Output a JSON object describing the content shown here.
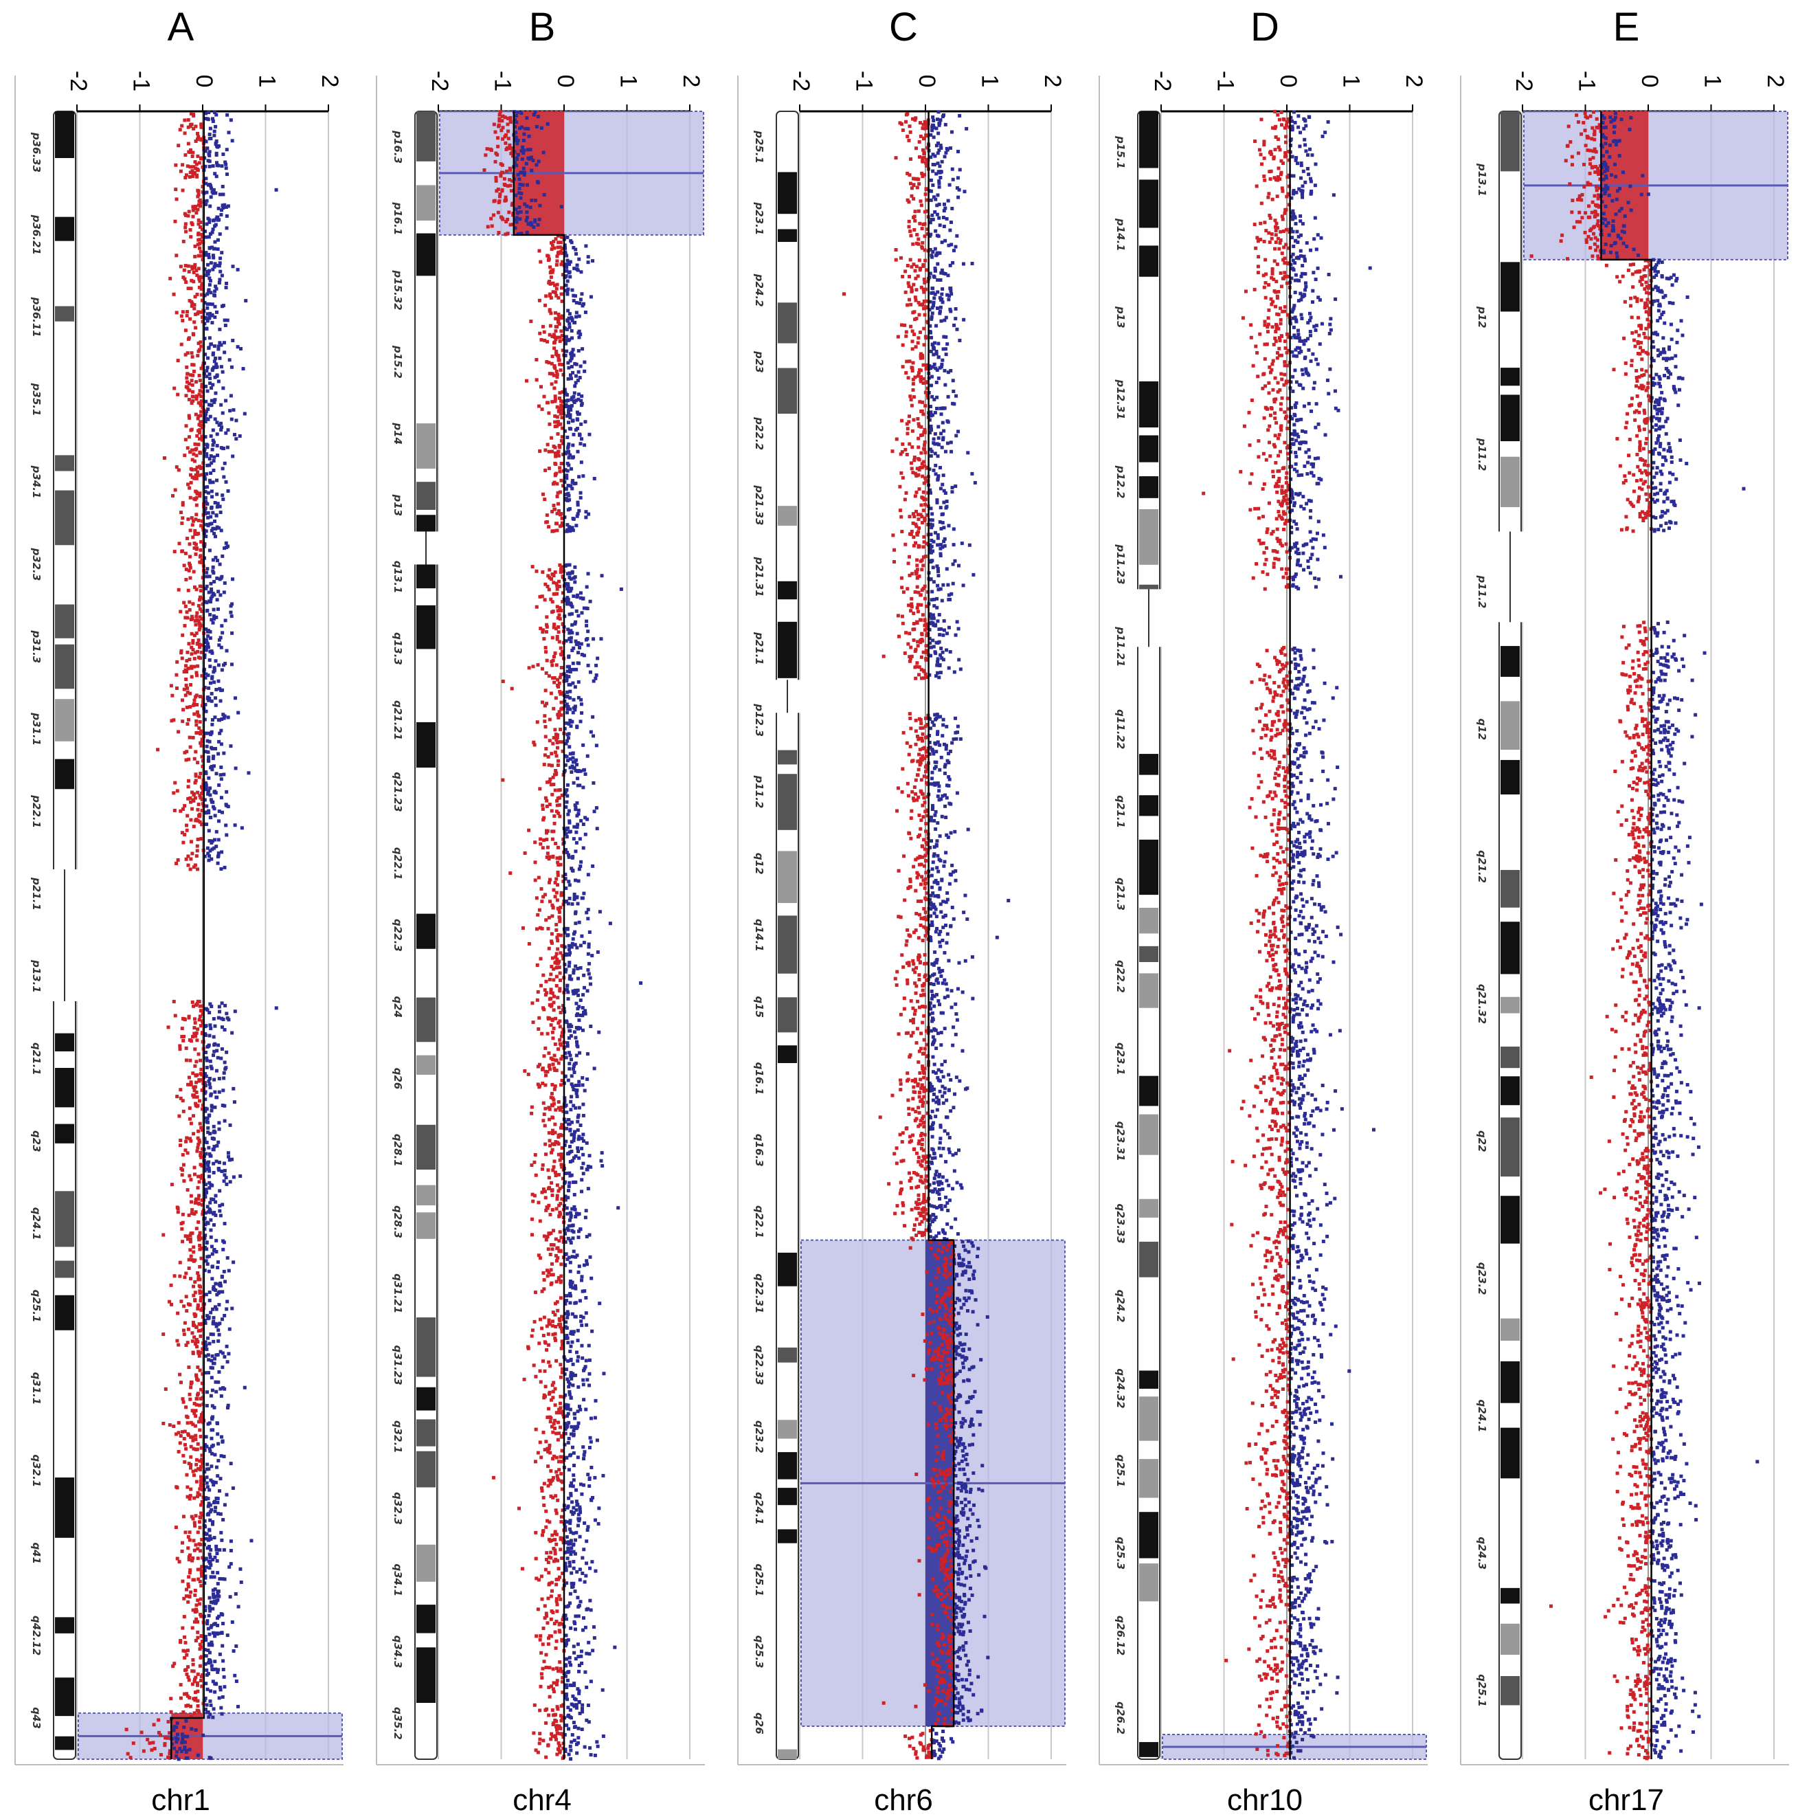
{
  "colors": {
    "loss": "#cc2228",
    "gain": "#2c2c96",
    "highlight_fill": "#b9b9e6",
    "highlight_border": "#5a5ab4",
    "grid": "#c8c8c8",
    "axis": "#000000"
  },
  "chart_data": [
    {
      "panel": "A",
      "type": "scatter",
      "title": "A",
      "xlabel": "chr1",
      "xlim": [
        -2,
        2
      ],
      "x_ticks": [
        "-2",
        "-1",
        "0",
        "1",
        "2"
      ],
      "band_labels": [
        "p36.33",
        "p36.21",
        "p36.11",
        "p35.1",
        "p34.1",
        "p32.3",
        "p31.3",
        "p31.1",
        "p22.1",
        "p21.1",
        "p13.1",
        "q21.1",
        "q23",
        "q24.1",
        "q25.1",
        "q31.1",
        "q32.1",
        "q41",
        "q42.12",
        "q43"
      ],
      "segments": [
        {
          "start_frac": 0.0,
          "end_frac": 0.46,
          "center": 0.02,
          "spread": 0.42
        },
        {
          "start_frac": 0.54,
          "end_frac": 0.975,
          "center": 0.02,
          "spread": 0.42
        },
        {
          "start_frac": 0.975,
          "end_frac": 1.0,
          "center": -0.5,
          "spread": 0.5
        }
      ],
      "highlights": [
        {
          "from_frac": 0.972,
          "to_frac": 1.0,
          "value": -0.5,
          "label": "loss"
        }
      ]
    },
    {
      "panel": "B",
      "type": "scatter",
      "title": "B",
      "xlabel": "chr4",
      "xlim": [
        -2,
        2
      ],
      "x_ticks": [
        "-2",
        "-1",
        "0",
        "1",
        "2"
      ],
      "band_labels": [
        "p16.3",
        "p16.1",
        "p15.32",
        "p15.2",
        "p14",
        "p13",
        "q13.1",
        "q13.3",
        "q21.21",
        "q21.23",
        "q22.1",
        "q22.3",
        "q24",
        "q26",
        "q28.1",
        "q28.3",
        "q31.21",
        "q31.23",
        "q32.1",
        "q32.3",
        "q34.1",
        "q34.3",
        "q35.2"
      ],
      "segments": [
        {
          "start_frac": 0.0,
          "end_frac": 0.075,
          "center": -0.8,
          "spread": 0.45
        },
        {
          "start_frac": 0.075,
          "end_frac": 0.255,
          "center": 0.0,
          "spread": 0.35
        },
        {
          "start_frac": 0.275,
          "end_frac": 1.0,
          "center": 0.0,
          "spread": 0.45
        }
      ],
      "highlights": [
        {
          "from_frac": 0.0,
          "to_frac": 0.075,
          "value": -0.8,
          "label": "loss"
        }
      ]
    },
    {
      "panel": "C",
      "type": "scatter",
      "title": "C",
      "xlabel": "chr6",
      "xlim": [
        -2,
        2
      ],
      "x_ticks": [
        "-2",
        "-1",
        "0",
        "1",
        "2"
      ],
      "band_labels": [
        "p25.1",
        "p23.1",
        "p24.2",
        "p23",
        "p22.2",
        "p21.33",
        "p21.31",
        "p21.1",
        "p12.3",
        "p11.2",
        "q12",
        "q14.1",
        "q15",
        "q16.1",
        "q16.3",
        "q22.1",
        "q22.31",
        "q22.33",
        "q23.2",
        "q24.1",
        "q25.1",
        "q25.3",
        "q26"
      ],
      "segments": [
        {
          "start_frac": 0.0,
          "end_frac": 0.345,
          "center": 0.05,
          "spread": 0.45
        },
        {
          "start_frac": 0.365,
          "end_frac": 0.685,
          "center": 0.05,
          "spread": 0.45
        },
        {
          "start_frac": 0.685,
          "end_frac": 0.98,
          "center": 0.45,
          "spread": 0.38
        },
        {
          "start_frac": 0.98,
          "end_frac": 1.0,
          "center": 0.1,
          "spread": 0.3
        }
      ],
      "highlights": [
        {
          "from_frac": 0.685,
          "to_frac": 0.98,
          "value": 0.45,
          "label": "gain"
        }
      ]
    },
    {
      "panel": "D",
      "type": "scatter",
      "title": "D",
      "xlabel": "chr10",
      "xlim": [
        -2,
        2
      ],
      "x_ticks": [
        "-2",
        "-1",
        "0",
        "1",
        "2"
      ],
      "band_labels": [
        "p15.1",
        "p14.1",
        "p13",
        "p12.31",
        "p12.2",
        "p11.23",
        "p11.21",
        "q11.22",
        "q21.1",
        "q21.3",
        "q22.2",
        "q23.1",
        "q23.31",
        "q23.33",
        "q24.2",
        "q24.32",
        "q25.1",
        "q25.3",
        "q26.12",
        "q26.2"
      ],
      "segments": [
        {
          "start_frac": 0.0,
          "end_frac": 0.29,
          "center": 0.05,
          "spread": 0.55
        },
        {
          "start_frac": 0.325,
          "end_frac": 1.0,
          "center": 0.05,
          "spread": 0.55
        }
      ],
      "highlights": [
        {
          "from_frac": 0.985,
          "to_frac": 1.0,
          "value": 0.0,
          "label": "loss"
        }
      ]
    },
    {
      "panel": "E",
      "type": "scatter",
      "title": "E",
      "xlabel": "chr17",
      "xlim": [
        -2,
        2
      ],
      "x_ticks": [
        "-2",
        "-1",
        "0",
        "1",
        "2"
      ],
      "band_labels": [
        "p13.1",
        "p12",
        "p11.2",
        "p11.2",
        "q12",
        "q21.2",
        "q21.32",
        "q22",
        "q23.2",
        "q24.1",
        "q24.3",
        "q25.1"
      ],
      "segments": [
        {
          "start_frac": 0.0,
          "end_frac": 0.09,
          "center": -0.75,
          "spread": 0.5
        },
        {
          "start_frac": 0.09,
          "end_frac": 0.255,
          "center": 0.05,
          "spread": 0.45
        },
        {
          "start_frac": 0.31,
          "end_frac": 1.0,
          "center": 0.05,
          "spread": 0.5
        }
      ],
      "highlights": [
        {
          "from_frac": 0.0,
          "to_frac": 0.09,
          "value": -0.75,
          "label": "loss"
        }
      ]
    }
  ]
}
